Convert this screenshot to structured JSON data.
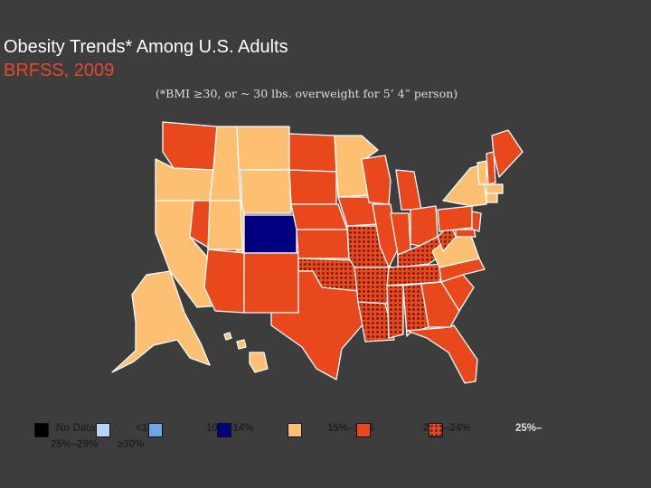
{
  "title": "Obesity Trends* Among U.S. Adults",
  "subtitle": "BRFSS, 2009",
  "note": "(*BMI ≥30, or ~ 30 lbs. overweight for 5’ 4” person)",
  "legend": {
    "no_data": "No Data",
    "lt10": "<10%",
    "r10_14": "10%–14%",
    "r15_19": "15%–19%",
    "r20_24": "20%–24%",
    "r25_29": "25%–29%",
    "ge30": "≥30%"
  },
  "colors": {
    "background": "#3d3d3d",
    "no_data": "#ffffff",
    "lt10": "#b8d4f4",
    "r10_14": "#6ea4e8",
    "r15_19": "#000080",
    "r20_24": "#fdc073",
    "r25_29": "#e8481c",
    "ge30": "#7a1e10",
    "title": "#ffffff",
    "subtitle": "#e04a2c"
  }
}
